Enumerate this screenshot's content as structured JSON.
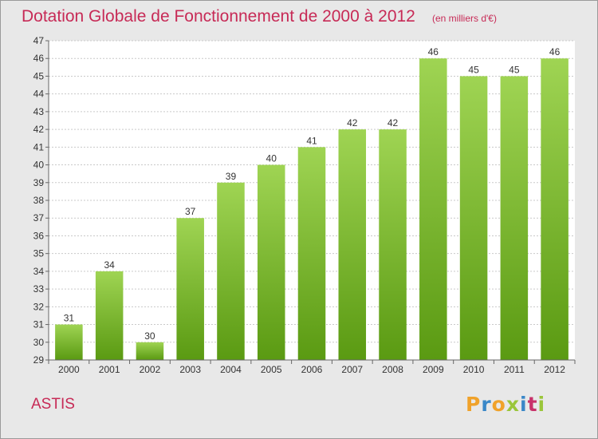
{
  "header": {
    "title": "Dotation Globale de Fonctionnement de 2000 à 2012",
    "subtitle": "(en milliers d'€)"
  },
  "footer": {
    "location": "ASTIS",
    "logo_text": "Proxiti"
  },
  "colors": {
    "title": "#c72a56",
    "bar_top": "#9fd453",
    "bar_bottom": "#5a9a12",
    "background": "#e8e8e8",
    "plot_background": "#ffffff",
    "grid": "#c9c9c9",
    "logo": [
      "#f0a22a",
      "#3a88c8",
      "#f0a22a",
      "#9ac63a",
      "#3a88c8",
      "#c8326a",
      "#9ac63a"
    ]
  },
  "chart_data": {
    "type": "bar",
    "categories": [
      "2000",
      "2001",
      "2002",
      "2003",
      "2004",
      "2005",
      "2006",
      "2007",
      "2008",
      "2009",
      "2010",
      "2011",
      "2012"
    ],
    "values": [
      31,
      34,
      30,
      37,
      39,
      40,
      41,
      42,
      42,
      46,
      45,
      45,
      46
    ],
    "title": "Dotation Globale de Fonctionnement de 2000 à 2012",
    "subtitle": "(en milliers d'€)",
    "xlabel": "",
    "ylabel": "",
    "ylim": [
      29,
      47
    ],
    "yticks": [
      29,
      30,
      31,
      32,
      33,
      34,
      35,
      36,
      37,
      38,
      39,
      40,
      41,
      42,
      43,
      44,
      45,
      46,
      47
    ],
    "grid": true,
    "data_labels": true
  }
}
